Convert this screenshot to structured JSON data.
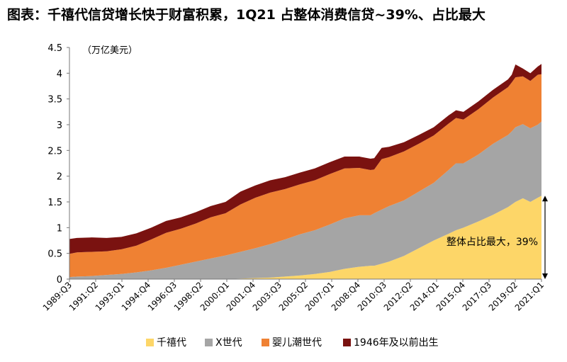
{
  "title": "图表：千禧代信贷增长快于财富积累，1Q21 占整体消费信贷~39%、占比最大",
  "chart_data": {
    "type": "area",
    "stacked": true,
    "unit_label": "（万亿美元）",
    "ylim": [
      0,
      4.5
    ],
    "y_ticks": [
      "0",
      "0.5",
      "1",
      "1.5",
      "2",
      "2.5",
      "3",
      "3.5",
      "4",
      "4.5"
    ],
    "y_tick_values": [
      0,
      0.5,
      1,
      1.5,
      2,
      2.5,
      3,
      3.5,
      4,
      4.5
    ],
    "x_tick_labels": [
      "1989:Q3",
      "1991:Q2",
      "1993:Q1",
      "1994:Q4",
      "1996:Q3",
      "1998:Q2",
      "2000:Q1",
      "2001:Q4",
      "2003:Q3",
      "2005:Q2",
      "2007:Q1",
      "2008:Q4",
      "2010:Q3",
      "2012:Q2",
      "2014:Q1",
      "2015:Q4",
      "2017:Q3",
      "2019:Q2",
      "2021:Q1"
    ],
    "x": [
      1989.5,
      1990,
      1991,
      1992,
      1993,
      1994,
      1995,
      1996,
      1997,
      1998,
      1999,
      2000,
      2001,
      2002,
      2003,
      2004,
      2005,
      2006,
      2007,
      2008,
      2009,
      2009.75,
      2010,
      2010.5,
      2011,
      2012,
      2013,
      2014,
      2015,
      2015.5,
      2016,
      2017,
      2018,
      2019,
      2019.25,
      2019.5,
      2020,
      2020.5,
      2021,
      2021.25
    ],
    "series": [
      {
        "name": "千禧代",
        "color": "#fdd668",
        "values": [
          0,
          0,
          0,
          0,
          0,
          0,
          0,
          0,
          0,
          0,
          0,
          0,
          0.01,
          0.02,
          0.03,
          0.05,
          0.07,
          0.1,
          0.14,
          0.2,
          0.24,
          0.26,
          0.26,
          0.3,
          0.34,
          0.45,
          0.6,
          0.75,
          0.88,
          0.95,
          1.0,
          1.12,
          1.25,
          1.4,
          1.45,
          1.5,
          1.57,
          1.5,
          1.58,
          1.62
        ]
      },
      {
        "name": "X世代",
        "color": "#a5a5a5",
        "values": [
          0.04,
          0.05,
          0.06,
          0.08,
          0.1,
          0.13,
          0.17,
          0.22,
          0.28,
          0.34,
          0.4,
          0.46,
          0.52,
          0.58,
          0.65,
          0.72,
          0.8,
          0.85,
          0.92,
          0.98,
          1.0,
          0.98,
          1.02,
          1.05,
          1.08,
          1.08,
          1.1,
          1.12,
          1.24,
          1.3,
          1.25,
          1.3,
          1.38,
          1.4,
          1.42,
          1.45,
          1.44,
          1.43,
          1.42,
          1.44
        ]
      },
      {
        "name": "婴儿潮世代",
        "color": "#ef8133",
        "values": [
          0.45,
          0.47,
          0.47,
          0.46,
          0.48,
          0.52,
          0.6,
          0.68,
          0.7,
          0.74,
          0.8,
          0.82,
          0.92,
          0.98,
          1.0,
          0.98,
          0.97,
          0.97,
          0.98,
          0.97,
          0.92,
          0.88,
          0.85,
          0.98,
          0.95,
          0.95,
          0.93,
          0.92,
          0.9,
          0.88,
          0.85,
          0.88,
          0.9,
          0.93,
          0.95,
          0.97,
          0.93,
          0.92,
          0.97,
          0.92
        ]
      },
      {
        "name": "1946年及以前出生",
        "color": "#7a1210",
        "values": [
          0.29,
          0.28,
          0.28,
          0.26,
          0.24,
          0.24,
          0.23,
          0.23,
          0.22,
          0.22,
          0.22,
          0.22,
          0.25,
          0.24,
          0.24,
          0.23,
          0.23,
          0.23,
          0.23,
          0.23,
          0.22,
          0.22,
          0.22,
          0.22,
          0.2,
          0.18,
          0.17,
          0.16,
          0.16,
          0.15,
          0.15,
          0.15,
          0.15,
          0.15,
          0.15,
          0.25,
          0.15,
          0.15,
          0.16,
          0.2
        ]
      }
    ],
    "annotation": {
      "text": "整体占比最大，39%",
      "x": 2021.25,
      "y_from": 0,
      "y_to": 1.62
    },
    "legend_placement": "bottom",
    "grid": false
  }
}
